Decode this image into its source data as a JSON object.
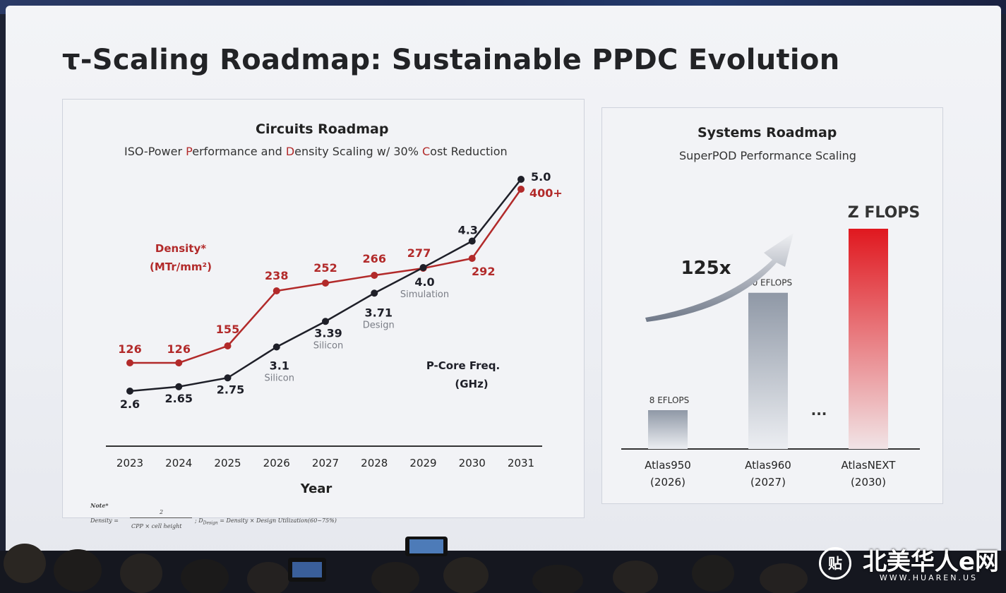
{
  "slide_title": "τ-Scaling Roadmap: Sustainable PPDC Evolution",
  "circuits": {
    "title": "Circuits Roadmap",
    "subtitle": {
      "part1": "ISO-Power ",
      "p_letter": "P",
      "part2": "erformance and ",
      "d_letter": "D",
      "part3": "ensity Scaling w/ 30% ",
      "c_letter": "C",
      "part4": "ost Reduction"
    }
  },
  "chart_data": [
    {
      "type": "line",
      "title": "Circuits Roadmap",
      "subtitle": "ISO-Power Performance and Density Scaling w/ 30% Cost Reduction",
      "xlabel": "Year",
      "categories": [
        "2023",
        "2024",
        "2025",
        "2026",
        "2027",
        "2028",
        "2029",
        "2030",
        "2031"
      ],
      "grid": false,
      "series": [
        {
          "name": "Density* (MTr/mm²)",
          "color": "#b22a2a",
          "values": [
            126,
            126,
            155,
            238,
            252,
            266,
            277,
            292,
            400
          ],
          "labels": [
            "126",
            "126",
            "155",
            "238",
            "252",
            "266",
            "277",
            "292",
            "400+"
          ],
          "name_lines": [
            "Density*",
            "(MTr/mm²)"
          ]
        },
        {
          "name": "P-Core Freq. (GHz)",
          "color": "#1e1f28",
          "values": [
            2.6,
            2.65,
            2.75,
            3.1,
            3.39,
            3.71,
            4.0,
            4.3,
            5.0
          ],
          "labels": [
            "2.6",
            "2.65",
            "2.75",
            "3.1",
            "3.39",
            "3.71",
            "4.0",
            "4.3",
            "5.0"
          ],
          "stage_labels": [
            "",
            "",
            "",
            "Silicon",
            "Silicon",
            "Design",
            "Simulation",
            "",
            ""
          ],
          "name_lines": [
            "P-Core Freq.",
            "(GHz)"
          ]
        }
      ]
    },
    {
      "type": "bar",
      "title": "Systems Roadmap",
      "subtitle": "SuperPOD Performance Scaling",
      "categories": [
        "Atlas950 (2026)",
        "Atlas960 (2027)",
        "AtlasNEXT (2030)"
      ],
      "category_lines": [
        [
          "Atlas950",
          "(2026)"
        ],
        [
          "Atlas960",
          "(2027)"
        ],
        [
          "AtlasNEXT",
          "(2030)"
        ]
      ],
      "values": [
        8,
        60,
        1000
      ],
      "value_labels": [
        "8 EFLOPS",
        "60 EFLOPS",
        "Z FLOPS"
      ],
      "colors": [
        "#8f98a6",
        "#8f98a6",
        "#e0181f"
      ],
      "growth_label": "125x",
      "ellipsis": "...",
      "grid": false
    }
  ],
  "note": {
    "heading": "Note*",
    "density_lhs": "Density =",
    "numerator": "2",
    "denominator": "CPP × cell height",
    "rest": "; D",
    "rest_sub": "Design",
    "rest2": " = Density × Design Utilization(60~75%)"
  },
  "watermark": {
    "badge": "贴",
    "text": "北美华人e网",
    "url": "WWW.HUAREN.US"
  }
}
